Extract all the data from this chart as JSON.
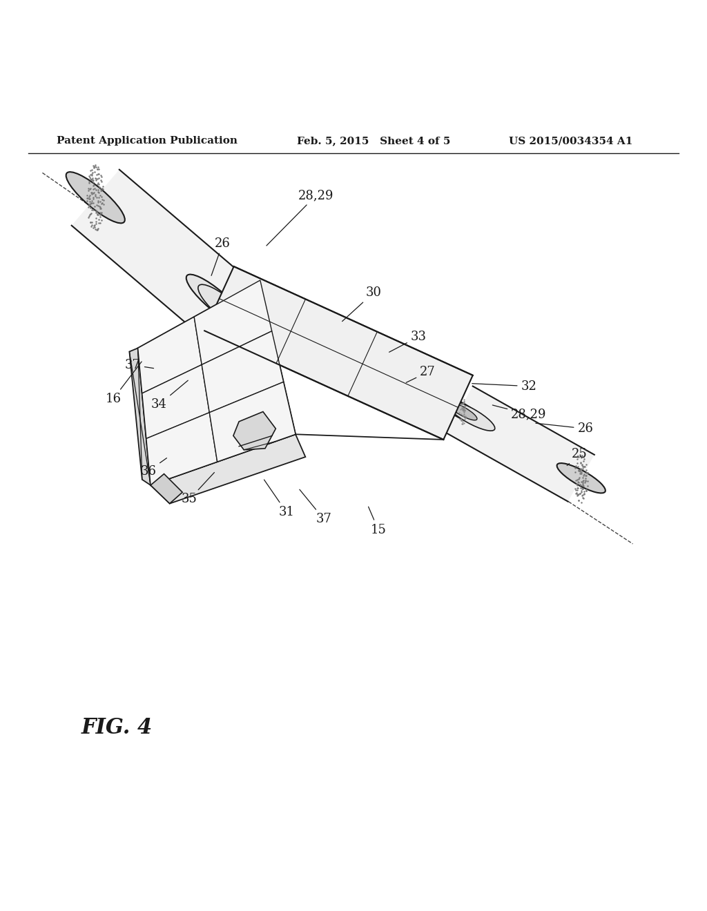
{
  "background_color": "#ffffff",
  "header_left": "Patent Application Publication",
  "header_mid": "Feb. 5, 2015   Sheet 4 of 5",
  "header_right": "US 2015/0034354 A1",
  "fig_label": "FIG. 4",
  "header_fontsize": 11,
  "fig_label_fontsize": 22,
  "label_fontsize": 13,
  "line_color": "#1a1a1a"
}
